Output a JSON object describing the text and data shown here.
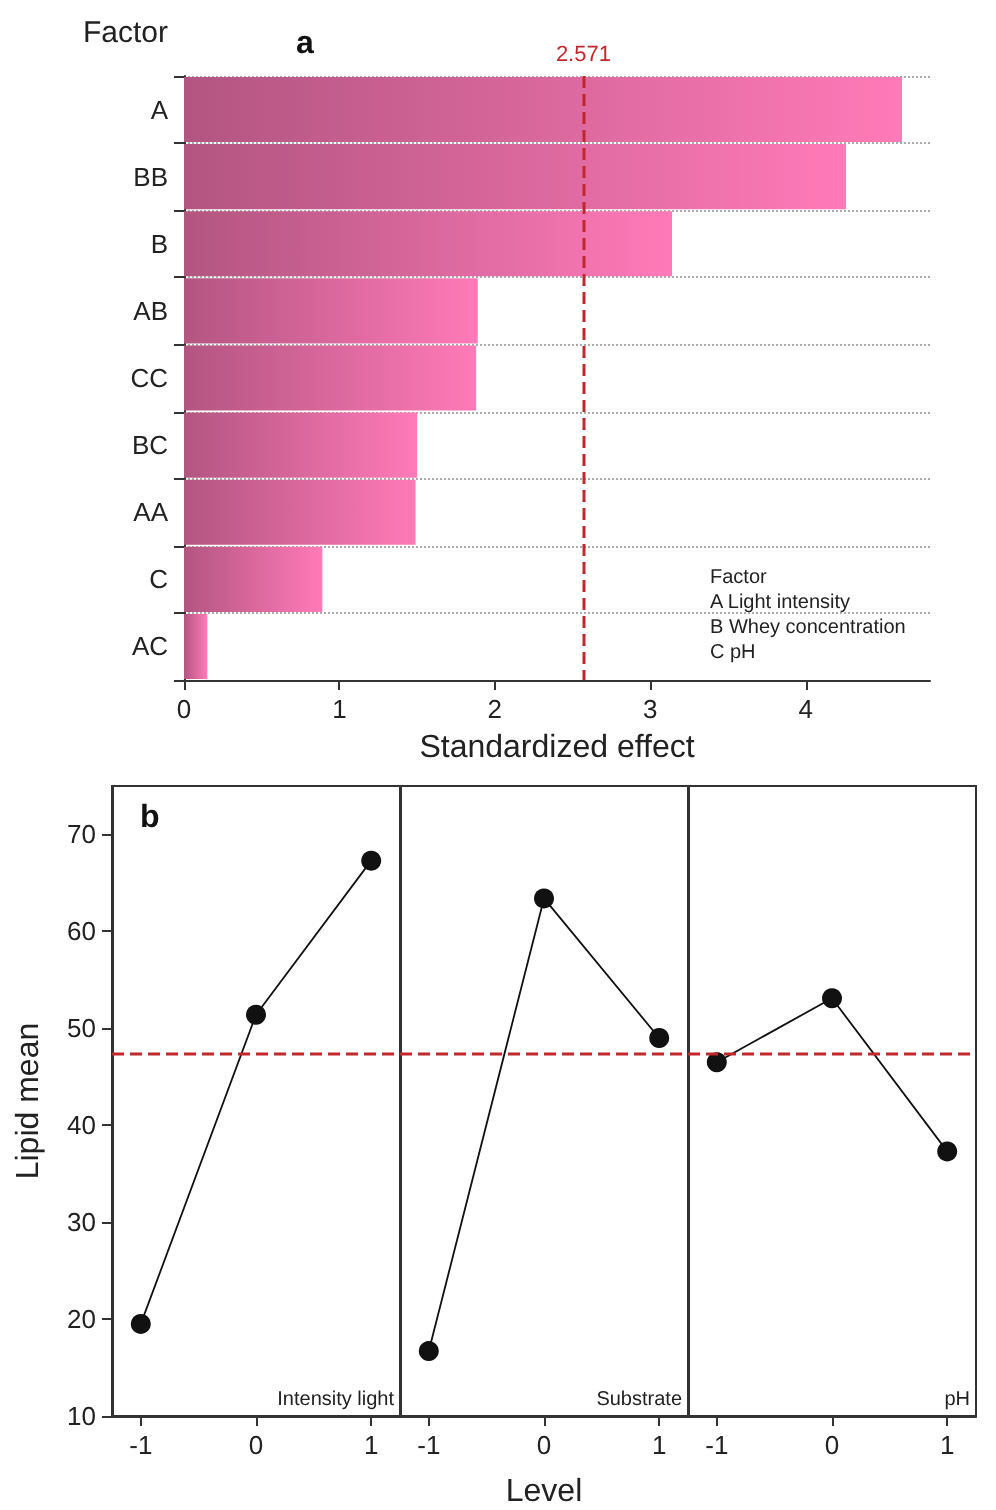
{
  "chart_data": [
    {
      "type": "bar",
      "orientation": "horizontal",
      "title": "a",
      "ylabel": "Factor",
      "xlabel": "Standardized effect",
      "categories": [
        "A",
        "BB",
        "B",
        "AB",
        "CC",
        "BC",
        "AA",
        "C",
        "AC"
      ],
      "values": [
        4.62,
        4.26,
        3.14,
        1.89,
        1.88,
        1.5,
        1.49,
        0.89,
        0.15
      ],
      "color": "#ff7ab8",
      "xlim": [
        0,
        4.8
      ],
      "xticks": [
        0,
        1,
        2,
        3,
        4
      ],
      "grid": "y",
      "ref_lines": [
        {
          "axis": "x",
          "value": 2.571,
          "label": "2.571",
          "color": "#c0282d",
          "line_style": "dashed"
        }
      ],
      "annotations": [
        "Factor",
        "A Light intensity",
        "B Whey concentration",
        "C pH"
      ]
    },
    {
      "type": "line",
      "title": "b",
      "ylabel": "Lipid mean",
      "x": [
        -1,
        0,
        1
      ],
      "series": [
        {
          "color": "#111111",
          "values": [
            19.5,
            51.4,
            67.3
          ]
        }
      ],
      "xlim": [
        -1.25,
        1.25
      ],
      "xticks": [
        -1,
        0,
        1
      ],
      "ylim": [
        10,
        75
      ],
      "yticks": [
        10,
        20,
        30,
        40,
        50,
        60,
        70
      ],
      "marker": "circle",
      "grid": false,
      "ref_lines": [
        {
          "axis": "y",
          "value": 47.4,
          "label": null,
          "color": "#c0282d",
          "line_style": "dashed"
        }
      ],
      "annotations": [
        "Intensity light"
      ]
    },
    {
      "type": "line",
      "xlabel": "Level",
      "x": [
        -1,
        0,
        1
      ],
      "series": [
        {
          "color": "#111111",
          "values": [
            16.7,
            63.4,
            49.0
          ]
        }
      ],
      "xlim": [
        -1.25,
        1.25
      ],
      "xticks": [
        -1,
        0,
        1
      ],
      "ylim": [
        10,
        75
      ],
      "tick_labels": "x",
      "marker": "circle",
      "grid": false,
      "ref_lines": [
        {
          "axis": "y",
          "value": 47.4,
          "label": null,
          "color": "#c0282d",
          "line_style": "dashed"
        }
      ],
      "annotations": [
        "Substrate"
      ]
    },
    {
      "type": "line",
      "x": [
        -1,
        0,
        1
      ],
      "series": [
        {
          "color": "#111111",
          "values": [
            46.5,
            53.1,
            37.3
          ]
        }
      ],
      "xlim": [
        -1.25,
        1.25
      ],
      "xticks": [
        -1,
        0,
        1
      ],
      "ylim": [
        10,
        75
      ],
      "tick_labels": "x",
      "marker": "circle",
      "grid": false,
      "ref_lines": [
        {
          "axis": "y",
          "value": 47.4,
          "label": null,
          "color": "#c0282d",
          "line_style": "dashed"
        }
      ],
      "annotations": [
        "pH"
      ]
    }
  ]
}
